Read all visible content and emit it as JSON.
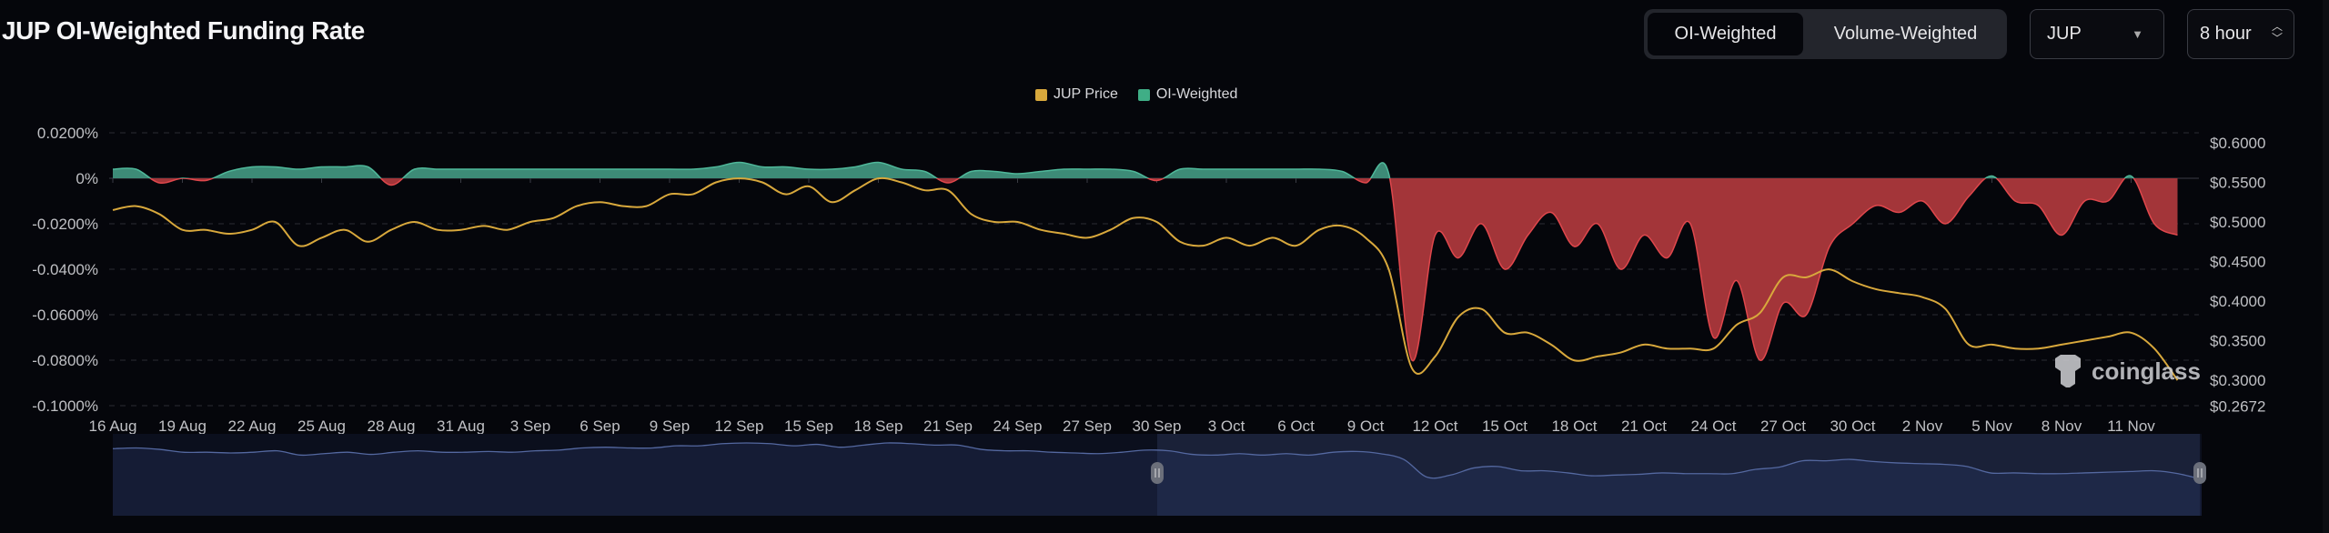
{
  "header": {
    "title": "JUP OI-Weighted Funding Rate"
  },
  "controls": {
    "weighting_tabs": [
      {
        "label": "OI-Weighted",
        "active": true
      },
      {
        "label": "Volume-Weighted",
        "active": false
      }
    ],
    "symbol": "JUP",
    "interval": "8 hour"
  },
  "watermark": "coinglass",
  "colors": {
    "price": "#d8a83c",
    "positive": "#3d8b77",
    "negative": "#a33539",
    "background": "#05060b"
  },
  "chart_data": {
    "type": "area",
    "title": "JUP OI-Weighted Funding Rate",
    "legend": {
      "placement": "top-center",
      "entries": [
        "JUP Price",
        "OI-Weighted"
      ]
    },
    "grid": true,
    "x_ticks": [
      "16 Aug",
      "19 Aug",
      "22 Aug",
      "25 Aug",
      "28 Aug",
      "31 Aug",
      "3 Sep",
      "6 Sep",
      "9 Sep",
      "12 Sep",
      "15 Sep",
      "18 Sep",
      "21 Sep",
      "24 Sep",
      "27 Sep",
      "30 Sep",
      "3 Oct",
      "6 Oct",
      "9 Oct",
      "12 Oct",
      "15 Oct",
      "18 Oct",
      "21 Oct",
      "24 Oct",
      "27 Oct",
      "30 Oct",
      "2 Nov",
      "5 Nov",
      "8 Nov",
      "11 Nov"
    ],
    "y_left": {
      "ticks": [
        "0.0200%",
        "0%",
        "-0.0200%",
        "-0.0400%",
        "-0.0600%",
        "-0.0800%",
        "-0.1000%"
      ],
      "range": [
        -0.1,
        0.02
      ],
      "unit": "%"
    },
    "y_right": {
      "ticks": [
        "$0.6000",
        "$0.5500",
        "$0.5000",
        "$0.4500",
        "$0.4000",
        "$0.3500",
        "$0.3000",
        "$0.2672"
      ],
      "range": [
        0.2672,
        0.6
      ]
    },
    "x_start": "16 Aug",
    "x_end": "13 Nov",
    "series": [
      {
        "name": "OI-Weighted",
        "axis": "left",
        "values": [
          0.004,
          0.004,
          -0.002,
          0.0,
          -0.001,
          0.003,
          0.005,
          0.005,
          0.004,
          0.005,
          0.005,
          0.005,
          -0.003,
          0.004,
          0.004,
          0.004,
          0.004,
          0.004,
          0.004,
          0.004,
          0.004,
          0.004,
          0.004,
          0.004,
          0.004,
          0.004,
          0.005,
          0.007,
          0.005,
          0.005,
          0.004,
          0.004,
          0.005,
          0.007,
          0.004,
          0.003,
          -0.002,
          0.003,
          0.003,
          0.002,
          0.003,
          0.004,
          0.004,
          0.004,
          0.003,
          -0.001,
          0.004,
          0.004,
          0.004,
          0.004,
          0.004,
          0.004,
          0.004,
          0.003,
          -0.002,
          0.002,
          -0.08,
          -0.025,
          -0.035,
          -0.02,
          -0.04,
          -0.025,
          -0.015,
          -0.03,
          -0.02,
          -0.04,
          -0.025,
          -0.035,
          -0.02,
          -0.07,
          -0.045,
          -0.08,
          -0.055,
          -0.06,
          -0.03,
          -0.02,
          -0.012,
          -0.015,
          -0.01,
          -0.02,
          -0.008,
          0.001,
          -0.01,
          -0.012,
          -0.025,
          -0.01,
          -0.01,
          0.001,
          -0.02,
          -0.025
        ]
      },
      {
        "name": "JUP Price",
        "axis": "right",
        "values": [
          0.515,
          0.52,
          0.51,
          0.49,
          0.49,
          0.485,
          0.49,
          0.5,
          0.47,
          0.48,
          0.49,
          0.475,
          0.49,
          0.5,
          0.49,
          0.49,
          0.495,
          0.49,
          0.5,
          0.505,
          0.52,
          0.525,
          0.52,
          0.52,
          0.535,
          0.535,
          0.55,
          0.555,
          0.55,
          0.535,
          0.545,
          0.525,
          0.54,
          0.555,
          0.55,
          0.54,
          0.54,
          0.51,
          0.5,
          0.5,
          0.49,
          0.485,
          0.48,
          0.49,
          0.505,
          0.5,
          0.475,
          0.47,
          0.48,
          0.47,
          0.48,
          0.47,
          0.49,
          0.495,
          0.48,
          0.44,
          0.315,
          0.33,
          0.38,
          0.39,
          0.36,
          0.36,
          0.345,
          0.325,
          0.33,
          0.335,
          0.345,
          0.34,
          0.34,
          0.34,
          0.37,
          0.385,
          0.43,
          0.43,
          0.44,
          0.425,
          0.415,
          0.41,
          0.405,
          0.39,
          0.345,
          0.345,
          0.34,
          0.34,
          0.345,
          0.35,
          0.355,
          0.36,
          0.34,
          0.3
        ]
      }
    ]
  }
}
